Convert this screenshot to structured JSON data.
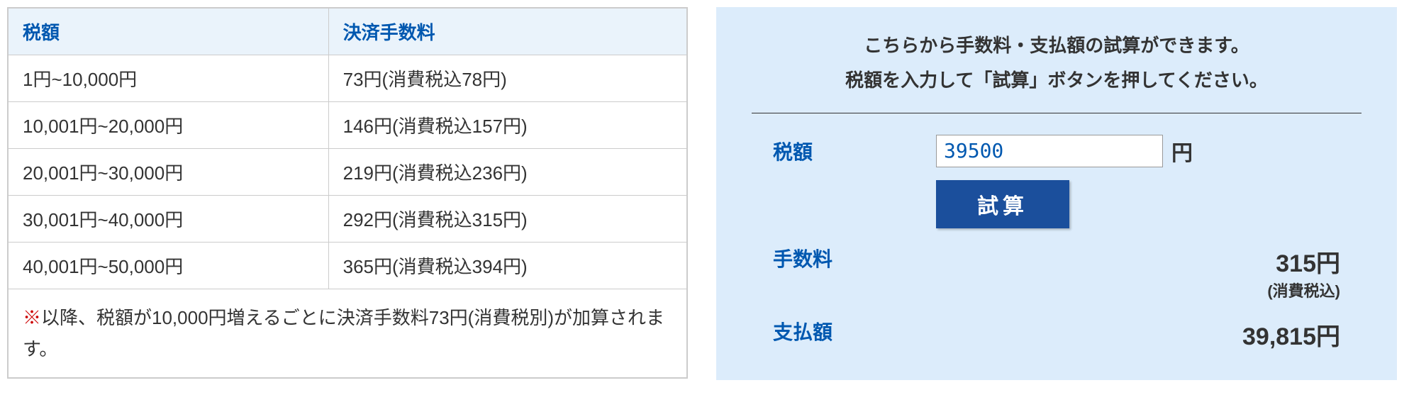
{
  "colors": {
    "header_bg": "#eaf3fb",
    "header_text": "#0058b0",
    "border": "#cccccc",
    "panel_bg": "#dcecfb",
    "button_bg": "#1b4f9c",
    "note_mark": "#cc0000",
    "text": "#333333"
  },
  "fee_table": {
    "headers": [
      "税額",
      "決済手数料"
    ],
    "rows": [
      {
        "range": "1円~10,000円",
        "fee": "73円(消費税込78円)"
      },
      {
        "range": "10,001円~20,000円",
        "fee": "146円(消費税込157円)"
      },
      {
        "range": "20,001円~30,000円",
        "fee": "219円(消費税込236円)"
      },
      {
        "range": "30,001円~40,000円",
        "fee": "292円(消費税込315円)"
      },
      {
        "range": "40,001円~50,000円",
        "fee": "365円(消費税込394円)"
      }
    ],
    "note_mark": "※",
    "note_text": "以降、税額が10,000円増えるごとに決済手数料73円(消費税別)が加算されます。"
  },
  "calculator": {
    "intro_line1": "こちらから手数料・支払額の試算ができます。",
    "intro_line2": "税額を入力して「試算」ボタンを押してください。",
    "tax_label": "税額",
    "tax_input_value": "39500",
    "yen_suffix": "円",
    "button_label": "試算",
    "fee_label": "手数料",
    "fee_value": "315円",
    "fee_sub": "(消費税込)",
    "total_label": "支払額",
    "total_value": "39,815円"
  }
}
